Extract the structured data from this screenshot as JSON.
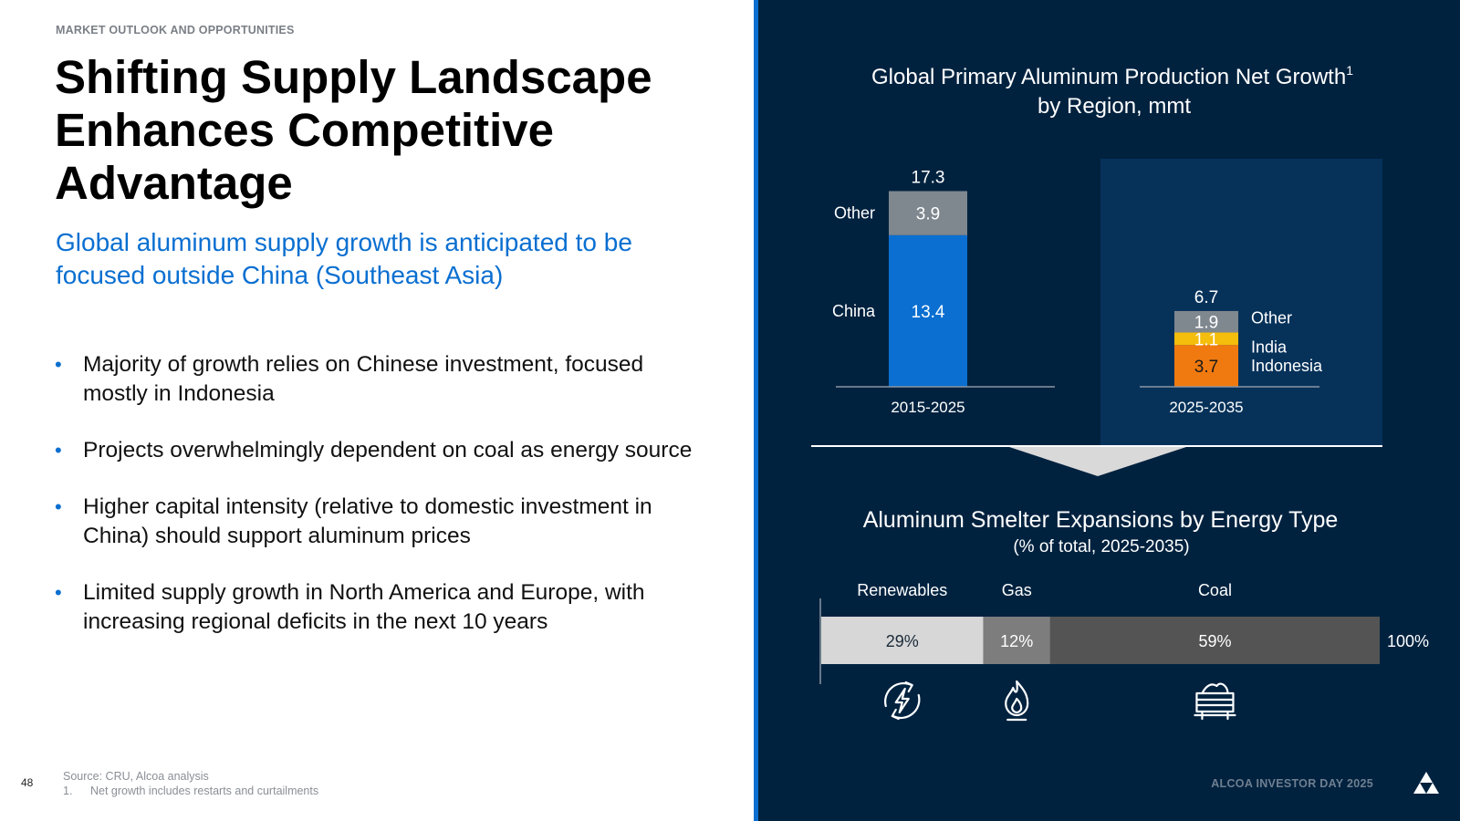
{
  "header": {
    "eyebrow": "MARKET OUTLOOK AND OPPORTUNITIES"
  },
  "title": "Shifting Supply Landscape Enhances Competitive Advantage",
  "subtitle": "Global aluminum supply growth is anticipated to be focused outside China (Southeast Asia)",
  "bullets": [
    "Majority of growth relies on Chinese investment, focused mostly in Indonesia",
    "Projects overwhelmingly dependent on coal as energy source",
    "Higher capital intensity (relative to domestic investment in China) should support aluminum prices",
    "Limited supply growth in North America and Europe, with increasing regional deficits in the next 10 years"
  ],
  "footer": {
    "page_number": "48",
    "source": "Source: CRU, Alcoa analysis",
    "footnote_number": "1.",
    "footnote_text": "Net growth includes restarts and curtailments",
    "brand": "ALCOA INVESTOR DAY 2025"
  },
  "chart_data": [
    {
      "type": "bar",
      "stacked": true,
      "title": "Global Primary Aluminum Production Net Growth",
      "title_superscript": "1",
      "subtitle": "by Region, mmt",
      "categories": [
        "2015-2025",
        "2025-2035"
      ],
      "totals": [
        "17.3",
        "6.7"
      ],
      "series": [
        {
          "name": "China",
          "values": [
            13.4,
            null
          ],
          "color": "#0a6fd1",
          "labels": [
            "13.4",
            ""
          ]
        },
        {
          "name": "Indonesia",
          "values": [
            null,
            3.7
          ],
          "color": "#f07a10",
          "labels": [
            "",
            "3.7"
          ]
        },
        {
          "name": "India",
          "values": [
            null,
            1.1
          ],
          "color": "#f5bd0c",
          "labels": [
            "",
            "1.1"
          ]
        },
        {
          "name": "Other",
          "values": [
            3.9,
            1.9
          ],
          "color": "#7f878f",
          "labels": [
            "3.9",
            "1.9"
          ]
        }
      ],
      "legend_left": [
        "Other",
        "China"
      ],
      "legend_right": [
        "Other",
        "India",
        "Indonesia"
      ],
      "highlight_category": "2025-2035",
      "highlight_color": "#06325a"
    },
    {
      "type": "bar",
      "stacked": true,
      "orientation": "horizontal",
      "title": "Aluminum Smelter Expansions by Energy Type",
      "subtitle": "(% of total, 2025-2035)",
      "total_label": "100%",
      "segments": [
        {
          "name": "Renewables",
          "value": 29,
          "label": "29%",
          "color": "#d7d7d7",
          "text_color": "#1a2a3a",
          "icon": "renewable-energy-icon"
        },
        {
          "name": "Gas",
          "value": 12,
          "label": "12%",
          "color": "#7d7d7d",
          "text_color": "#ffffff",
          "icon": "gas-flame-icon"
        },
        {
          "name": "Coal",
          "value": 59,
          "label": "59%",
          "color": "#545454",
          "text_color": "#ffffff",
          "icon": "coal-cart-icon"
        }
      ]
    }
  ]
}
